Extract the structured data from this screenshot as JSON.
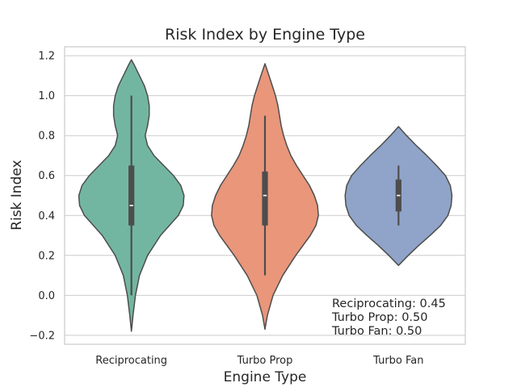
{
  "chart_data": {
    "type": "violin",
    "title": "Risk Index by Engine Type",
    "xlabel": "Engine Type",
    "ylabel": "Risk Index",
    "ylim": [
      -0.245,
      1.245
    ],
    "yticks": [
      -0.2,
      0.0,
      0.2,
      0.4,
      0.6,
      0.8,
      1.0,
      1.2
    ],
    "ytick_labels": [
      "−0.2",
      "0.0",
      "0.2",
      "0.4",
      "0.6",
      "0.8",
      "1.0",
      "1.2"
    ],
    "grid": true,
    "categories": [
      "Reciprocating",
      "Turbo Prop",
      "Turbo Fan"
    ],
    "series": [
      {
        "category": "Reciprocating",
        "color": "#72b6a1",
        "median": 0.45,
        "q1": 0.35,
        "q3": 0.65,
        "whisker_low": 0.0,
        "whisker_high": 1.0,
        "kde_y": [
          -0.18,
          -0.1,
          0.0,
          0.1,
          0.2,
          0.3,
          0.35,
          0.4,
          0.45,
          0.5,
          0.55,
          0.6,
          0.65,
          0.7,
          0.75,
          0.8,
          0.85,
          0.9,
          0.95,
          1.0,
          1.05,
          1.1,
          1.15,
          1.18
        ],
        "kde_w": [
          0.0,
          0.02,
          0.05,
          0.1,
          0.2,
          0.36,
          0.47,
          0.58,
          0.64,
          0.65,
          0.61,
          0.52,
          0.4,
          0.28,
          0.2,
          0.17,
          0.2,
          0.22,
          0.22,
          0.2,
          0.16,
          0.1,
          0.04,
          0.0
        ]
      },
      {
        "category": "Turbo Prop",
        "color": "#e9967a",
        "median": 0.5,
        "q1": 0.35,
        "q3": 0.62,
        "whisker_low": 0.1,
        "whisker_high": 0.9,
        "kde_y": [
          -0.17,
          -0.1,
          0.0,
          0.1,
          0.2,
          0.3,
          0.35,
          0.4,
          0.45,
          0.5,
          0.55,
          0.6,
          0.65,
          0.7,
          0.75,
          0.8,
          0.85,
          0.9,
          0.95,
          1.0,
          1.05,
          1.1,
          1.16
        ],
        "kde_w": [
          0.0,
          0.03,
          0.1,
          0.22,
          0.38,
          0.56,
          0.63,
          0.66,
          0.65,
          0.61,
          0.55,
          0.47,
          0.39,
          0.32,
          0.27,
          0.23,
          0.2,
          0.18,
          0.16,
          0.13,
          0.09,
          0.05,
          0.0
        ]
      },
      {
        "category": "Turbo Fan",
        "color": "#8fa4c8",
        "median": 0.5,
        "q1": 0.42,
        "q3": 0.58,
        "whisker_low": 0.35,
        "whisker_high": 0.65,
        "kde_y": [
          0.15,
          0.2,
          0.25,
          0.3,
          0.35,
          0.4,
          0.45,
          0.5,
          0.55,
          0.6,
          0.65,
          0.7,
          0.75,
          0.8,
          0.845
        ],
        "kde_w": [
          0.0,
          0.12,
          0.25,
          0.39,
          0.52,
          0.61,
          0.65,
          0.66,
          0.64,
          0.58,
          0.47,
          0.35,
          0.22,
          0.1,
          0.0
        ]
      }
    ],
    "annotation_lines": [
      "Reciprocating: 0.45",
      "Turbo Prop: 0.50",
      "Turbo Fan: 0.50"
    ]
  }
}
